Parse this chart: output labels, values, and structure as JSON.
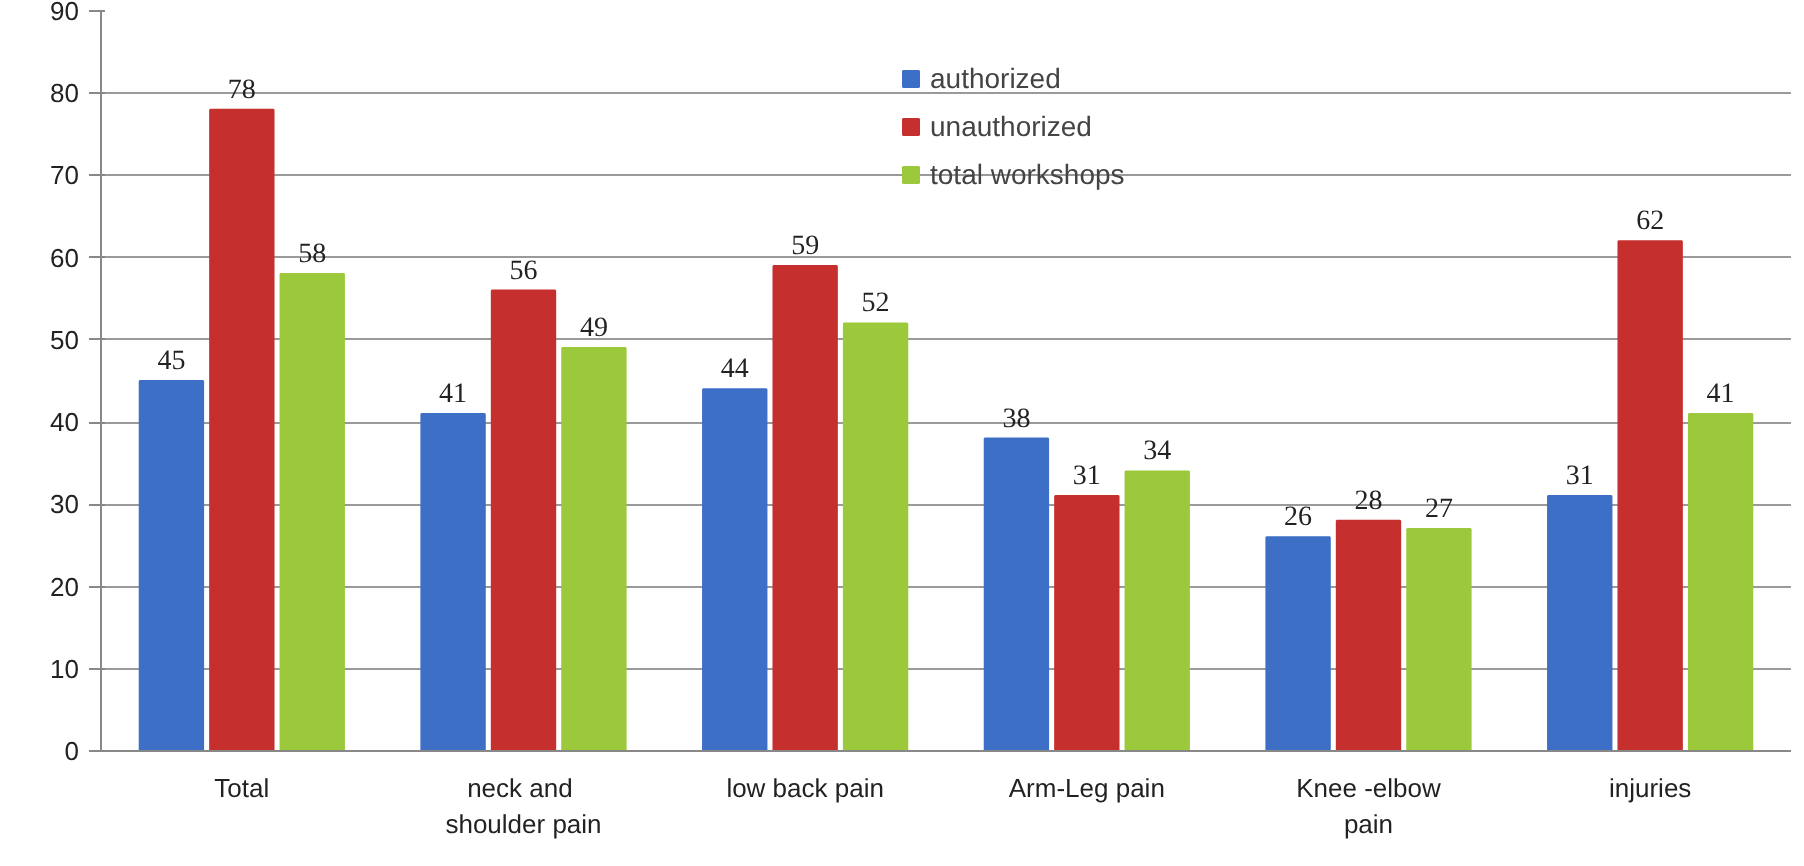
{
  "chart_data": {
    "type": "bar",
    "categories": [
      "Total",
      "neck  and\nshoulder pain",
      "low back pain",
      "Arm-Leg pain",
      "Knee -elbow\npain",
      "injuries"
    ],
    "series": [
      {
        "name": "authorized",
        "color": "#3d6fc6",
        "values": [
          45,
          41,
          44,
          38,
          26,
          31
        ]
      },
      {
        "name": "unauthorized",
        "color": "#c5302e",
        "values": [
          78,
          56,
          59,
          31,
          28,
          62
        ]
      },
      {
        "name": "total workshops",
        "color": "#9cc93c",
        "values": [
          58,
          49,
          52,
          34,
          27,
          41
        ]
      }
    ],
    "ylim": [
      0,
      90
    ],
    "yticks": [
      0,
      10,
      20,
      30,
      40,
      50,
      60,
      70,
      80,
      90
    ],
    "grid": "y",
    "legend": "top right",
    "data_labels": true
  }
}
